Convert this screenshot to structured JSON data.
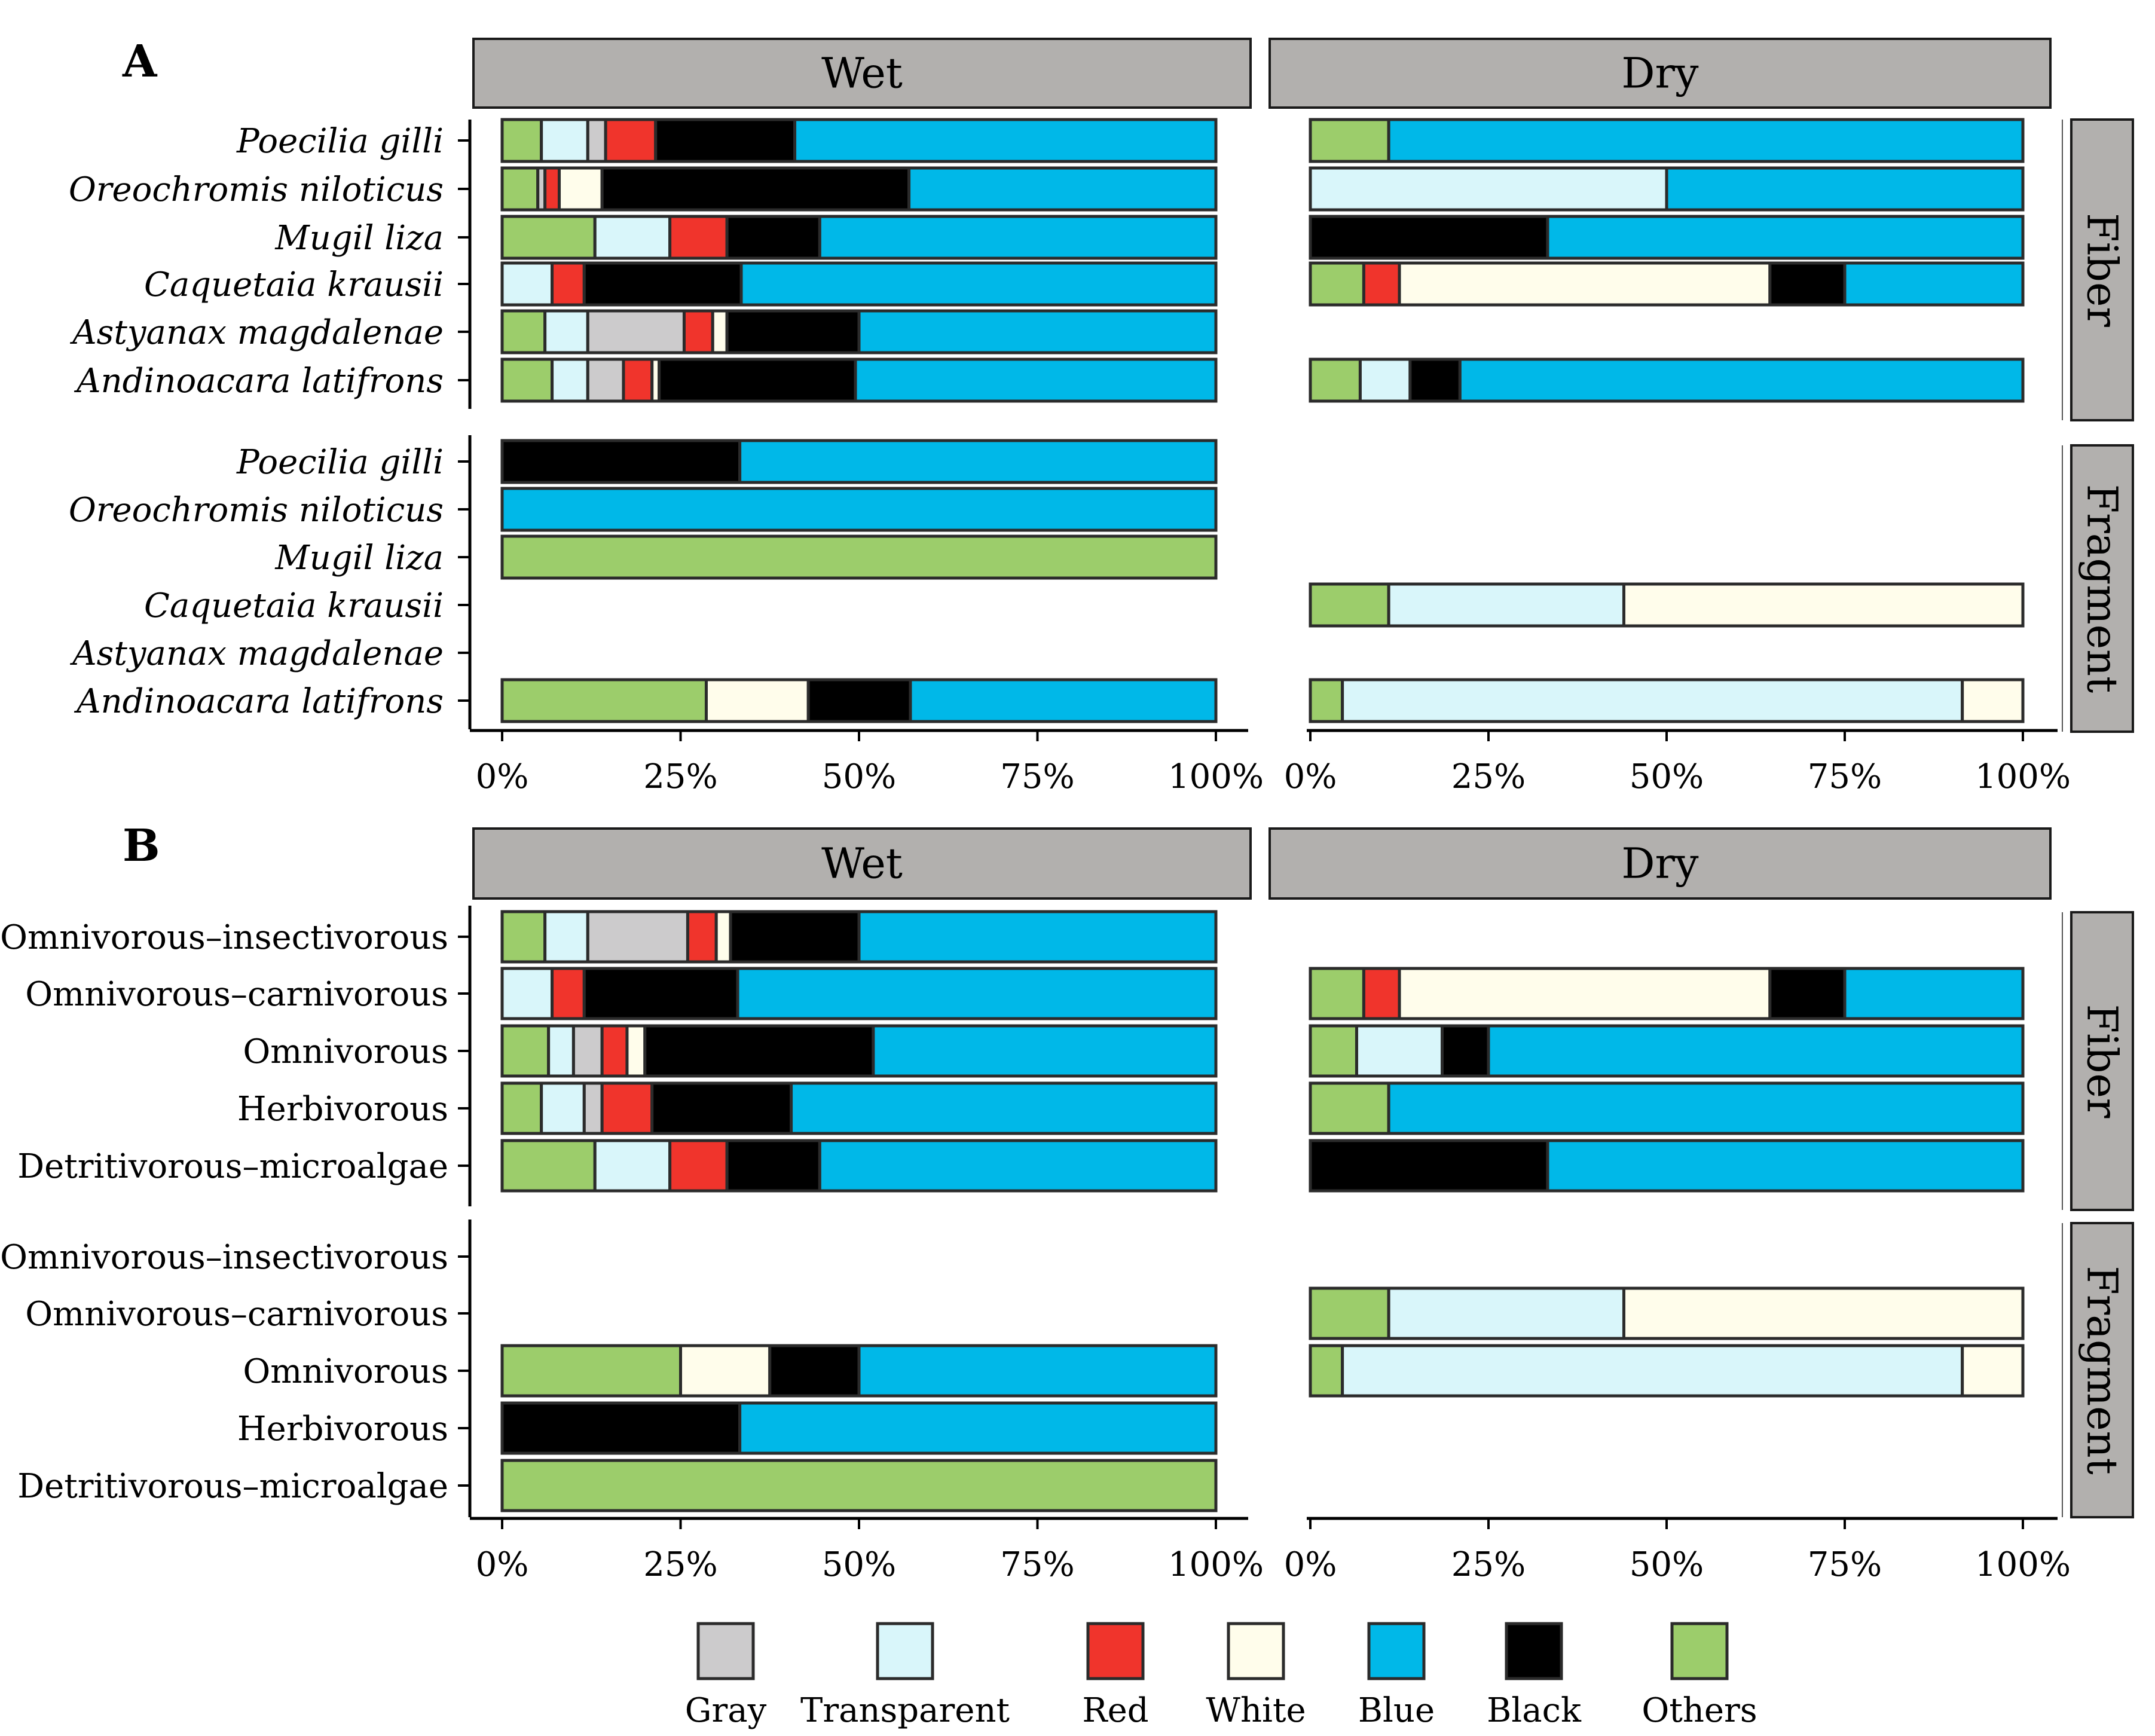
{
  "colors": {
    "Gray": "#cccbcc",
    "Transparent": "#d9f6fa",
    "Red": "#f0342c",
    "White": "#fffdeb",
    "Blue": "#00b8e8",
    "Black": "#000000",
    "Others": "#9ccd6b",
    "strip_fill": "#b2b0ae",
    "bar_outline": "#2b2b2b"
  },
  "legend": [
    "Gray",
    "Transparent",
    "Red",
    "White",
    "Blue",
    "Black",
    "Others"
  ],
  "chart_data": [
    {
      "panel": "A",
      "type": "bar",
      "orientation": "horizontal",
      "stacked": "percent",
      "columns": [
        "Wet",
        "Dry"
      ],
      "rows": [
        "Fiber",
        "Fragment"
      ],
      "xticks": [
        "0%",
        "25%",
        "50%",
        "75%",
        "100%"
      ],
      "xlim": [
        0,
        100
      ],
      "categories": [
        "Poecilia gilli",
        "Oreochromis niloticus",
        "Mugil liza",
        "Caquetaia krausii",
        "Astyanax magdalenae",
        "Andinoacara latifrons"
      ],
      "italic_categories": true,
      "facets": [
        {
          "column": "Wet",
          "row": "Fiber",
          "bars": [
            {
              "category": "Poecilia gilli",
              "segments": [
                [
                  "Others",
                  5.5
                ],
                [
                  "Transparent",
                  6.5
                ],
                [
                  "Gray",
                  2.5
                ],
                [
                  "Red",
                  7
                ],
                [
                  "Black",
                  19.5
                ],
                [
                  "Blue",
                  59
                ]
              ]
            },
            {
              "category": "Oreochromis niloticus",
              "segments": [
                [
                  "Others",
                  5
                ],
                [
                  "Gray",
                  1
                ],
                [
                  "Red",
                  2
                ],
                [
                  "White",
                  6
                ],
                [
                  "Black",
                  43
                ],
                [
                  "Blue",
                  43
                ]
              ]
            },
            {
              "category": "Mugil liza",
              "segments": [
                [
                  "Others",
                  13
                ],
                [
                  "Transparent",
                  10.5
                ],
                [
                  "Red",
                  8
                ],
                [
                  "Black",
                  13
                ],
                [
                  "Blue",
                  55.5
                ]
              ]
            },
            {
              "category": "Caquetaia krausii",
              "segments": [
                [
                  "Transparent",
                  7
                ],
                [
                  "Red",
                  4.5
                ],
                [
                  "Black",
                  22
                ],
                [
                  "Blue",
                  66.5
                ]
              ]
            },
            {
              "category": "Astyanax magdalenae",
              "segments": [
                [
                  "Others",
                  6
                ],
                [
                  "Transparent",
                  6
                ],
                [
                  "Gray",
                  13.5
                ],
                [
                  "Red",
                  4
                ],
                [
                  "White",
                  2
                ],
                [
                  "Black",
                  18.5
                ],
                [
                  "Blue",
                  50
                ]
              ]
            },
            {
              "category": "Andinoacara latifrons",
              "segments": [
                [
                  "Others",
                  7
                ],
                [
                  "Transparent",
                  5
                ],
                [
                  "Gray",
                  5
                ],
                [
                  "Red",
                  4
                ],
                [
                  "White",
                  1
                ],
                [
                  "Black",
                  27.5
                ],
                [
                  "Blue",
                  50.5
                ]
              ]
            }
          ]
        },
        {
          "column": "Dry",
          "row": "Fiber",
          "bars": [
            {
              "category": "Poecilia gilli",
              "segments": [
                [
                  "Others",
                  11
                ],
                [
                  "Blue",
                  89
                ]
              ]
            },
            {
              "category": "Oreochromis niloticus",
              "segments": [
                [
                  "Transparent",
                  50
                ],
                [
                  "Blue",
                  50
                ]
              ]
            },
            {
              "category": "Mugil liza",
              "segments": [
                [
                  "Black",
                  33.3
                ],
                [
                  "Blue",
                  66.7
                ]
              ]
            },
            {
              "category": "Caquetaia krausii",
              "segments": [
                [
                  "Others",
                  7.5
                ],
                [
                  "Red",
                  5
                ],
                [
                  "White",
                  52
                ],
                [
                  "Black",
                  10.5
                ],
                [
                  "Blue",
                  25
                ]
              ]
            },
            {
              "category": "Astyanax magdalenae",
              "segments": []
            },
            {
              "category": "Andinoacara latifrons",
              "segments": [
                [
                  "Others",
                  7
                ],
                [
                  "Transparent",
                  7
                ],
                [
                  "Black",
                  7
                ],
                [
                  "Blue",
                  79
                ]
              ]
            }
          ]
        },
        {
          "column": "Wet",
          "row": "Fragment",
          "bars": [
            {
              "category": "Poecilia gilli",
              "segments": [
                [
                  "Black",
                  33.3
                ],
                [
                  "Blue",
                  66.7
                ]
              ]
            },
            {
              "category": "Oreochromis niloticus",
              "segments": [
                [
                  "Blue",
                  100
                ]
              ]
            },
            {
              "category": "Mugil liza",
              "segments": [
                [
                  "Others",
                  100
                ]
              ]
            },
            {
              "category": "Caquetaia krausii",
              "segments": []
            },
            {
              "category": "Astyanax magdalenae",
              "segments": []
            },
            {
              "category": "Andinoacara latifrons",
              "segments": [
                [
                  "Others",
                  28.6
                ],
                [
                  "White",
                  14.3
                ],
                [
                  "Black",
                  14.3
                ],
                [
                  "Blue",
                  42.8
                ]
              ]
            }
          ]
        },
        {
          "column": "Dry",
          "row": "Fragment",
          "bars": [
            {
              "category": "Poecilia gilli",
              "segments": []
            },
            {
              "category": "Oreochromis niloticus",
              "segments": []
            },
            {
              "category": "Mugil liza",
              "segments": []
            },
            {
              "category": "Caquetaia krausii",
              "segments": [
                [
                  "Others",
                  11
                ],
                [
                  "Transparent",
                  33
                ],
                [
                  "White",
                  56
                ]
              ]
            },
            {
              "category": "Astyanax magdalenae",
              "segments": []
            },
            {
              "category": "Andinoacara latifrons",
              "segments": [
                [
                  "Others",
                  4.5
                ],
                [
                  "Transparent",
                  87
                ],
                [
                  "White",
                  8.5
                ]
              ]
            }
          ]
        }
      ]
    },
    {
      "panel": "B",
      "type": "bar",
      "orientation": "horizontal",
      "stacked": "percent",
      "columns": [
        "Wet",
        "Dry"
      ],
      "rows": [
        "Fiber",
        "Fragment"
      ],
      "xticks": [
        "0%",
        "25%",
        "50%",
        "75%",
        "100%"
      ],
      "xlim": [
        0,
        100
      ],
      "categories": [
        "Omnivorous–insectivorous",
        "Omnivorous–carnivorous",
        "Omnivorous",
        "Herbivorous",
        "Detritivorous–microalgae"
      ],
      "italic_categories": false,
      "facets": [
        {
          "column": "Wet",
          "row": "Fiber",
          "bars": [
            {
              "category": "Omnivorous–insectivorous",
              "segments": [
                [
                  "Others",
                  6
                ],
                [
                  "Transparent",
                  6
                ],
                [
                  "Gray",
                  14
                ],
                [
                  "Red",
                  4
                ],
                [
                  "White",
                  2
                ],
                [
                  "Black",
                  18
                ],
                [
                  "Blue",
                  50
                ]
              ]
            },
            {
              "category": "Omnivorous–carnivorous",
              "segments": [
                [
                  "Transparent",
                  7
                ],
                [
                  "Red",
                  4.5
                ],
                [
                  "Black",
                  21.5
                ],
                [
                  "Blue",
                  67
                ]
              ]
            },
            {
              "category": "Omnivorous",
              "segments": [
                [
                  "Others",
                  6.5
                ],
                [
                  "Transparent",
                  3.5
                ],
                [
                  "Gray",
                  4
                ],
                [
                  "Red",
                  3.5
                ],
                [
                  "White",
                  2.5
                ],
                [
                  "Black",
                  32
                ],
                [
                  "Blue",
                  48
                ]
              ]
            },
            {
              "category": "Herbivorous",
              "segments": [
                [
                  "Others",
                  5.5
                ],
                [
                  "Transparent",
                  6
                ],
                [
                  "Gray",
                  2.5
                ],
                [
                  "Red",
                  7
                ],
                [
                  "Black",
                  19.5
                ],
                [
                  "Blue",
                  59.5
                ]
              ]
            },
            {
              "category": "Detritivorous–microalgae",
              "segments": [
                [
                  "Others",
                  13
                ],
                [
                  "Transparent",
                  10.5
                ],
                [
                  "Red",
                  8
                ],
                [
                  "Black",
                  13
                ],
                [
                  "Blue",
                  55.5
                ]
              ]
            }
          ]
        },
        {
          "column": "Dry",
          "row": "Fiber",
          "bars": [
            {
              "category": "Omnivorous–insectivorous",
              "segments": []
            },
            {
              "category": "Omnivorous–carnivorous",
              "segments": [
                [
                  "Others",
                  7.5
                ],
                [
                  "Red",
                  5
                ],
                [
                  "White",
                  52
                ],
                [
                  "Black",
                  10.5
                ],
                [
                  "Blue",
                  25
                ]
              ]
            },
            {
              "category": "Omnivorous",
              "segments": [
                [
                  "Others",
                  6.5
                ],
                [
                  "Transparent",
                  12
                ],
                [
                  "Black",
                  6.5
                ],
                [
                  "Blue",
                  75
                ]
              ]
            },
            {
              "category": "Herbivorous",
              "segments": [
                [
                  "Others",
                  11
                ],
                [
                  "Blue",
                  89
                ]
              ]
            },
            {
              "category": "Detritivorous–microalgae",
              "segments": [
                [
                  "Black",
                  33.3
                ],
                [
                  "Blue",
                  66.7
                ]
              ]
            }
          ]
        },
        {
          "column": "Wet",
          "row": "Fragment",
          "bars": [
            {
              "category": "Omnivorous–insectivorous",
              "segments": []
            },
            {
              "category": "Omnivorous–carnivorous",
              "segments": []
            },
            {
              "category": "Omnivorous",
              "segments": [
                [
                  "Others",
                  25
                ],
                [
                  "White",
                  12.5
                ],
                [
                  "Black",
                  12.5
                ],
                [
                  "Blue",
                  50
                ]
              ]
            },
            {
              "category": "Herbivorous",
              "segments": [
                [
                  "Black",
                  33.3
                ],
                [
                  "Blue",
                  66.7
                ]
              ]
            },
            {
              "category": "Detritivorous–microalgae",
              "segments": [
                [
                  "Others",
                  100
                ]
              ]
            }
          ]
        },
        {
          "column": "Dry",
          "row": "Fragment",
          "bars": [
            {
              "category": "Omnivorous–insectivorous",
              "segments": []
            },
            {
              "category": "Omnivorous–carnivorous",
              "segments": [
                [
                  "Others",
                  11
                ],
                [
                  "Transparent",
                  33
                ],
                [
                  "White",
                  56
                ]
              ]
            },
            {
              "category": "Omnivorous",
              "segments": [
                [
                  "Others",
                  4.5
                ],
                [
                  "Transparent",
                  87
                ],
                [
                  "White",
                  8.5
                ]
              ]
            },
            {
              "category": "Herbivorous",
              "segments": []
            },
            {
              "category": "Detritivorous–microalgae",
              "segments": []
            }
          ]
        }
      ]
    }
  ]
}
